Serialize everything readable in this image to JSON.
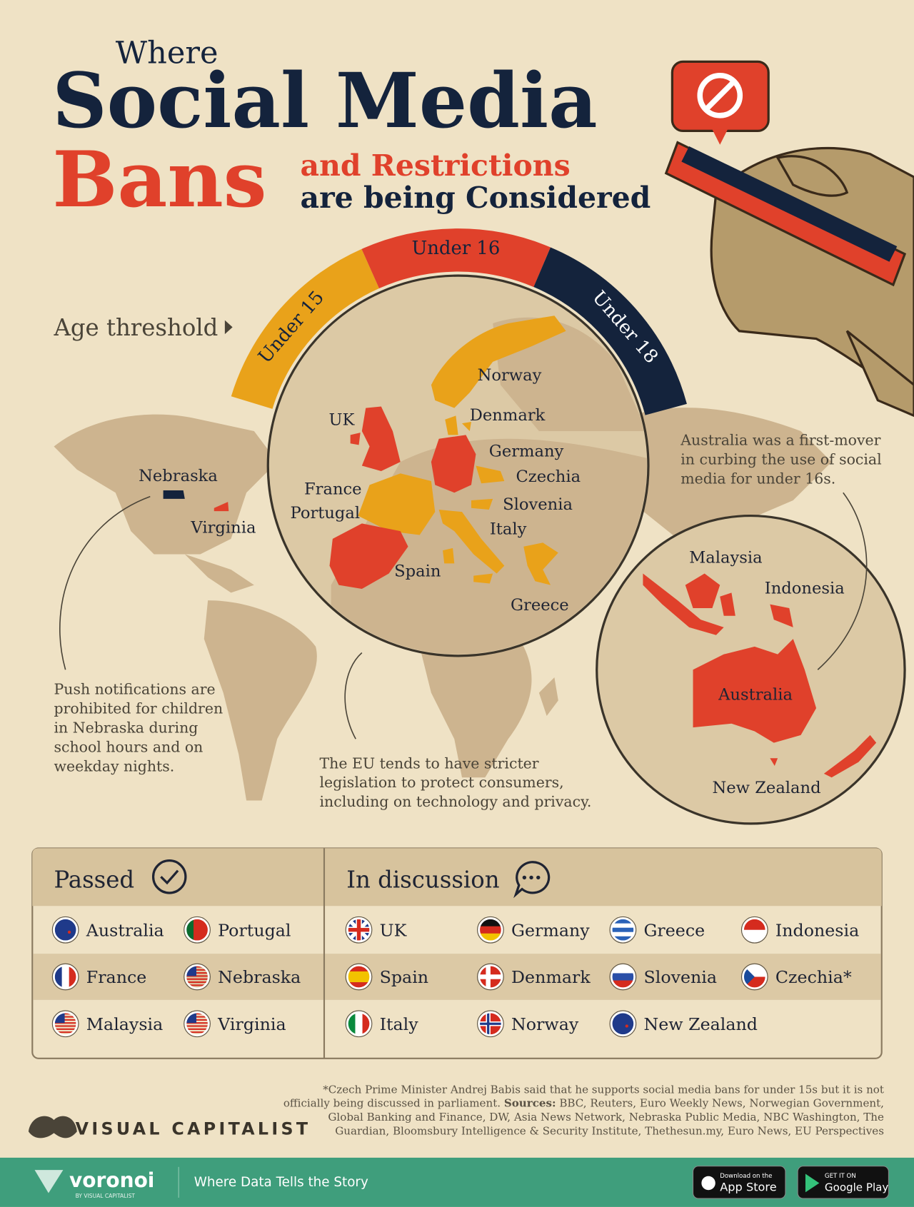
{
  "header": {
    "where": "Where",
    "social_media": "Social Media",
    "bans": "Bans",
    "and_restrictions": "and Restrictions",
    "being_considered": "are being Considered"
  },
  "age_threshold": {
    "label": "Age threshold",
    "bands": [
      "Under 15",
      "Under 16",
      "Under 18"
    ]
  },
  "map_labels": {
    "us": [
      "Nebraska",
      "Virginia"
    ],
    "europe": [
      "Norway",
      "UK",
      "Denmark",
      "Germany",
      "Czechia",
      "France",
      "Portugal",
      "Slovenia",
      "Italy",
      "Spain",
      "Greece"
    ],
    "asia_pacific": [
      "Malaysia",
      "Indonesia",
      "Australia",
      "New Zealand"
    ]
  },
  "annotations": {
    "australia": [
      "Australia was a first-mover",
      "in curbing the use of social",
      "media for under 16s."
    ],
    "nebraska": [
      "Push notifications are",
      "prohibited for children",
      "in Nebraska during",
      "school hours and on",
      "weekday nights."
    ],
    "eu": [
      "The EU tends to have stricter",
      "legislation to protect consumers,",
      "including on technology and privacy."
    ]
  },
  "table": {
    "passed": {
      "title": "Passed",
      "items": [
        "Australia",
        "Portugal",
        "France",
        "Nebraska",
        "Malaysia",
        "Virginia"
      ]
    },
    "in_discussion": {
      "title": "In discussion",
      "items": [
        "UK",
        "Germany",
        "Greece",
        "Indonesia",
        "Spain",
        "Denmark",
        "Slovenia",
        "Czechia*",
        "Italy",
        "Norway",
        "New Zealand"
      ]
    }
  },
  "footnote": {
    "line1": "*Czech Prime Minister Andrej Babis said that he supports social media bans for under 15s but it is not",
    "line2": "officially being discussed in parliament.",
    "sources_label": "Sources:",
    "sources_lines": [
      "BBC, Reuters, Euro Weekly News, Norwegian Government,",
      "Global Banking and Finance, DW, Asia News Network, Nebraska Public Media, NBC Washington, The",
      "Guardian, Bloomsbury Intelligence & Security Institute, Thethesun.my, Euro News, EU Perspectives"
    ]
  },
  "brand": "VISUAL CAPITALIST",
  "footer": {
    "logo": "voronoi",
    "logo_sub": "BY VISUAL CAPITALIST",
    "tagline": "Where Data Tells the Story",
    "app_store_small": "Download on the",
    "app_store": "App Store",
    "google_small": "GET IT ON",
    "google": "Google Play"
  }
}
